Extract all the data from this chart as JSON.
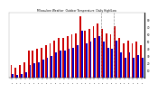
{
  "title": "Milwaukee Weather  Outdoor Temperature  Daily High/Low",
  "highs": [
    18,
    14,
    18,
    22,
    38,
    38,
    40,
    42,
    45,
    48,
    52,
    55,
    55,
    58,
    60,
    62,
    85,
    65,
    68,
    72,
    75,
    68,
    62,
    60,
    72,
    55,
    48,
    52,
    48,
    50,
    45
  ],
  "lows": [
    5,
    4,
    6,
    8,
    18,
    20,
    22,
    25,
    28,
    30,
    35,
    38,
    38,
    40,
    42,
    45,
    65,
    48,
    50,
    55,
    58,
    50,
    42,
    40,
    52,
    35,
    28,
    35,
    28,
    32,
    28
  ],
  "high_color": "#cc0000",
  "low_color": "#0000cc",
  "bg_color": "#ffffff",
  "plot_bg": "#ffffff",
  "yticks": [
    10,
    20,
    30,
    40,
    50,
    60,
    70,
    80
  ],
  "ylim": [
    0,
    90
  ],
  "dashed_line_x": [
    20.5,
    23.5
  ],
  "bar_width": 0.38
}
